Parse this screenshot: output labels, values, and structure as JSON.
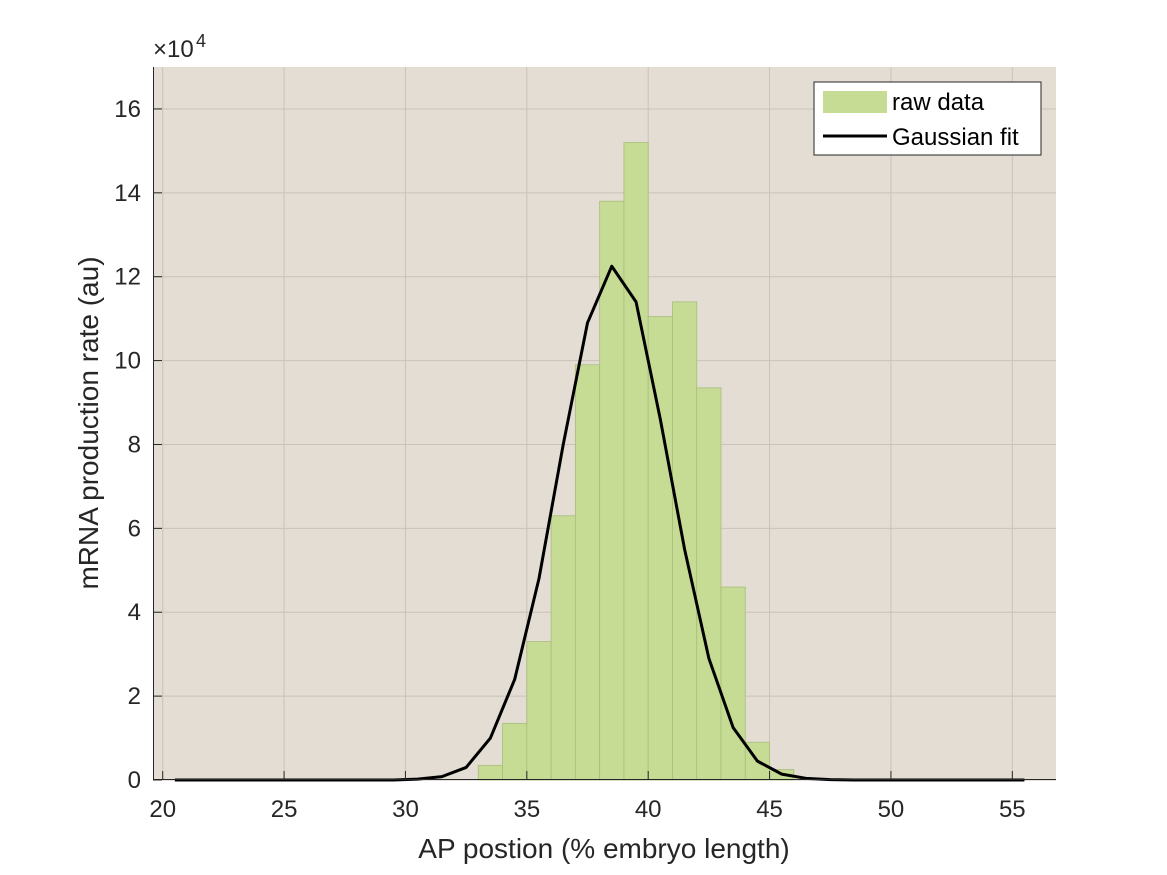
{
  "chart_data": {
    "type": "bar",
    "xlabel": "AP postion (% embryo length)",
    "ylabel": "mRNA production rate (au)",
    "y_exponent_label": "×10",
    "y_exponent_power": "4",
    "x_ticks": [
      "20",
      "25",
      "30",
      "35",
      "40",
      "45",
      "50",
      "55"
    ],
    "y_ticks": [
      "0",
      "2",
      "4",
      "6",
      "8",
      "10",
      "12",
      "14",
      "16"
    ],
    "xlim": [
      19.6,
      56.8
    ],
    "ylim": [
      0,
      170000
    ],
    "grid": true,
    "legend_position": "top-right",
    "legend": {
      "bar_label": "raw data",
      "line_label": "Gaussian fit"
    },
    "colors": {
      "background": "#e4ddd3",
      "bar_fill": "#c6dc94",
      "bar_edge": "#a8bd7d",
      "line": "#000000",
      "grid": "#c9c2b8"
    },
    "bar_width": 1,
    "bars": [
      {
        "x": 33.5,
        "y": 3500
      },
      {
        "x": 34.5,
        "y": 13500
      },
      {
        "x": 35.5,
        "y": 33000
      },
      {
        "x": 36.5,
        "y": 63000
      },
      {
        "x": 37.5,
        "y": 99000
      },
      {
        "x": 38.5,
        "y": 138000
      },
      {
        "x": 39.5,
        "y": 152000
      },
      {
        "x": 40.5,
        "y": 110500
      },
      {
        "x": 41.5,
        "y": 114000
      },
      {
        "x": 42.5,
        "y": 93500
      },
      {
        "x": 43.5,
        "y": 46000
      },
      {
        "x": 44.5,
        "y": 9000
      },
      {
        "x": 45.5,
        "y": 2500
      }
    ],
    "fit": {
      "x": [
        20.5,
        21.5,
        22.5,
        23.5,
        24.5,
        25.5,
        26.5,
        27.5,
        28.5,
        29.5,
        30.5,
        31.5,
        32.5,
        33.5,
        34.5,
        35.5,
        36.5,
        37.5,
        38.5,
        39.5,
        40.5,
        41.5,
        42.5,
        43.5,
        44.5,
        45.5,
        46.5,
        47.5,
        48.5,
        49.5,
        50.5,
        51.5,
        52.5,
        53.5,
        54.5,
        55.5
      ],
      "y": [
        0,
        0,
        0,
        0,
        0,
        0,
        0,
        0,
        0,
        0,
        200,
        800,
        3000,
        10000,
        24000,
        48000,
        80000,
        109000,
        122500,
        114000,
        86000,
        55000,
        29000,
        12500,
        4500,
        1400,
        400,
        100,
        0,
        0,
        0,
        0,
        0,
        0,
        0,
        0
      ]
    }
  }
}
